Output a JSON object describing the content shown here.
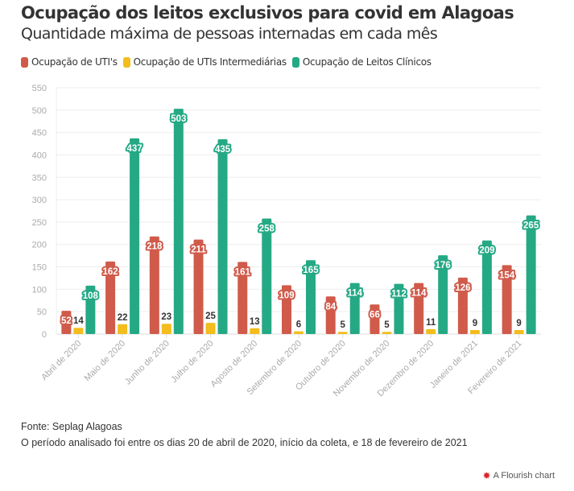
{
  "chart_data": {
    "type": "bar",
    "title": "Ocupação dos leitos exclusivos para covid em Alagoas",
    "subtitle": "Quantidade máxima de pessoas internadas em cada mês",
    "xlabel": "",
    "ylabel": "",
    "ylim": [
      0,
      550
    ],
    "yticks": [
      0,
      50,
      100,
      150,
      200,
      250,
      300,
      350,
      400,
      450,
      500,
      550
    ],
    "grid": true,
    "legend_position": "top-left",
    "categories": [
      "Abril de 2020",
      "Maio de 2020",
      "Junho de 2020",
      "Julho de 2020",
      "Agosto de 2020",
      "Setembro de 2020",
      "Outubro de 2020",
      "Novembro de 2020",
      "Dezembro de 2020",
      "Janeiro de 2021",
      "Fevereiro de 2021"
    ],
    "series": [
      {
        "name": "Ocupação de UTI's",
        "color": "#d05b4b",
        "values": [
          52,
          162,
          218,
          211,
          161,
          109,
          84,
          66,
          114,
          126,
          154
        ]
      },
      {
        "name": "Ocupação de UTIs Intermediárias",
        "color": "#f2bd1d",
        "values": [
          14,
          22,
          23,
          25,
          13,
          6,
          5,
          5,
          11,
          9,
          9
        ]
      },
      {
        "name": "Ocupação de Leitos Clínicos",
        "color": "#25a985",
        "values": [
          108,
          437,
          503,
          435,
          258,
          165,
          114,
          112,
          176,
          209,
          265
        ]
      }
    ]
  },
  "footer": {
    "source": "Fonte: Seplag Alagoas",
    "note": "O período analisado foi entre os dias 20 de abril de 2020, início da coleta, e 18 de fevereiro de 2021",
    "credit": "A Flourish chart",
    "credit_icon": "flourish-logo-icon"
  }
}
